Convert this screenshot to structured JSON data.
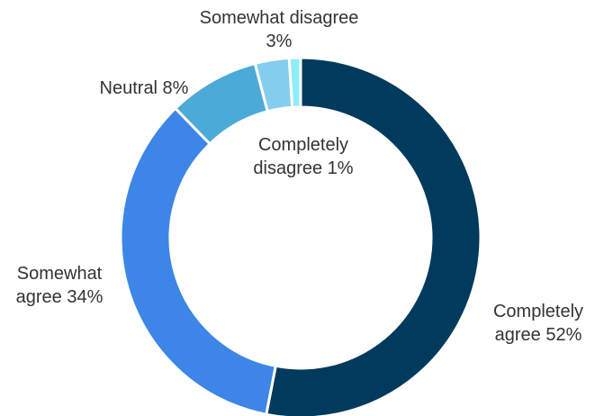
{
  "chart_data": {
    "type": "pie",
    "donut": true,
    "start": "top (12 o'clock), clockwise",
    "slices": [
      {
        "name": "Completely agree",
        "value": 52,
        "color": "#003A5C",
        "label_lines": [
          "Completely",
          "agree 52%"
        ]
      },
      {
        "name": "Somewhat agree",
        "value": 34,
        "color": "#3D86E8",
        "label_lines": [
          "Somewhat",
          "agree 34%"
        ]
      },
      {
        "name": "Neutral",
        "value": 8,
        "color": "#4BAAD8",
        "label_lines": [
          "Neutral 8%"
        ]
      },
      {
        "name": "Somewhat disagree",
        "value": 3,
        "color": "#85CDEC",
        "label_lines": [
          "Somewhat disagree",
          "3%"
        ]
      },
      {
        "name": "Completely disagree",
        "value": 1,
        "color": "#8FEDF8",
        "label_lines": [
          "Completely",
          "disagree 1%"
        ]
      }
    ],
    "legend": "none (direct labels)"
  }
}
